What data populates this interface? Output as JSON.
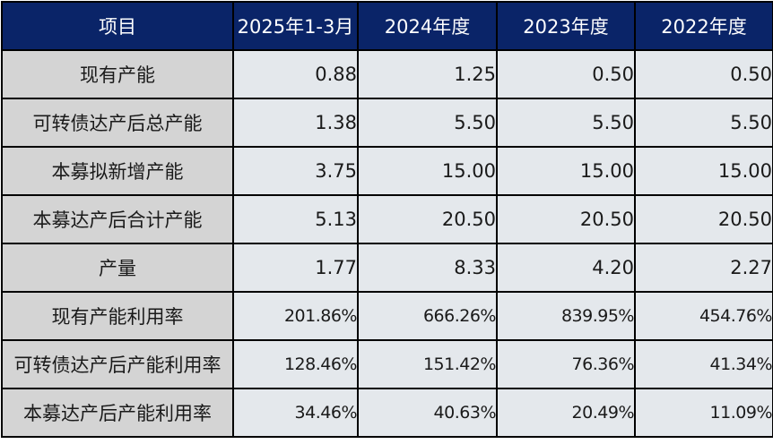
{
  "table": {
    "headers": [
      "项目",
      "2025年1-3月",
      "2024年度",
      "2023年度",
      "2022年度"
    ],
    "rows": [
      {
        "label": "现有产能",
        "values": [
          "0.88",
          "1.25",
          "0.50",
          "0.50"
        ]
      },
      {
        "label": "可转债达产后总产能",
        "values": [
          "1.38",
          "5.50",
          "5.50",
          "5.50"
        ]
      },
      {
        "label": "本募拟新增产能",
        "values": [
          "3.75",
          "15.00",
          "15.00",
          "15.00"
        ]
      },
      {
        "label": "本募达产后合计产能",
        "values": [
          "5.13",
          "20.50",
          "20.50",
          "20.50"
        ]
      },
      {
        "label": "产量",
        "values": [
          "1.77",
          "8.33",
          "4.20",
          "2.27"
        ]
      },
      {
        "label": "现有产能利用率",
        "values": [
          "201.86%",
          "666.26%",
          "839.95%",
          "454.76%"
        ]
      },
      {
        "label": "可转债达产后产能利用率",
        "values": [
          "128.46%",
          "151.42%",
          "76.36%",
          "41.34%"
        ]
      },
      {
        "label": "本募达产后产能利用率",
        "values": [
          "34.46%",
          "40.63%",
          "20.49%",
          "11.09%"
        ]
      }
    ]
  },
  "colors": {
    "header_background": "#0a2468",
    "header_text": "#ffffff",
    "label_background": "#d4d4d4",
    "value_background": "#e4e8ec",
    "border": "#000000"
  }
}
